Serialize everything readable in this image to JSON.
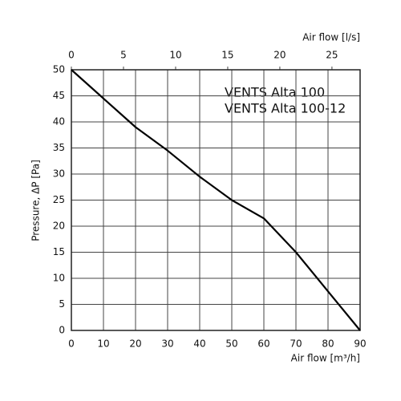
{
  "chart_data": {
    "type": "line",
    "x_label": "Air flow [m³/h]",
    "x2_label": "Air flow [l/s]",
    "y_label": "Pressure, ΔP [Pa]",
    "annotations": [
      "VENTS Alta 100",
      "VENTS Alta 100-12"
    ],
    "x": [
      0,
      10,
      20,
      30,
      40,
      50,
      60,
      70,
      80,
      90
    ],
    "series": [
      {
        "color": "#000000",
        "values": [
          50,
          44.5,
          39,
          34.5,
          29.5,
          25,
          21.5,
          15,
          7.5,
          0
        ]
      }
    ],
    "xlim": [
      0,
      90
    ],
    "xticks": [
      0,
      10,
      20,
      30,
      40,
      50,
      60,
      70,
      80,
      90
    ],
    "x2lim": [
      0,
      27.7
    ],
    "x2ticks": [
      0,
      5,
      10,
      15,
      20,
      25
    ],
    "ylim": [
      0,
      50
    ],
    "yticks": [
      0,
      5,
      10,
      15,
      20,
      25,
      30,
      35,
      40,
      45,
      50
    ],
    "grid": true
  }
}
